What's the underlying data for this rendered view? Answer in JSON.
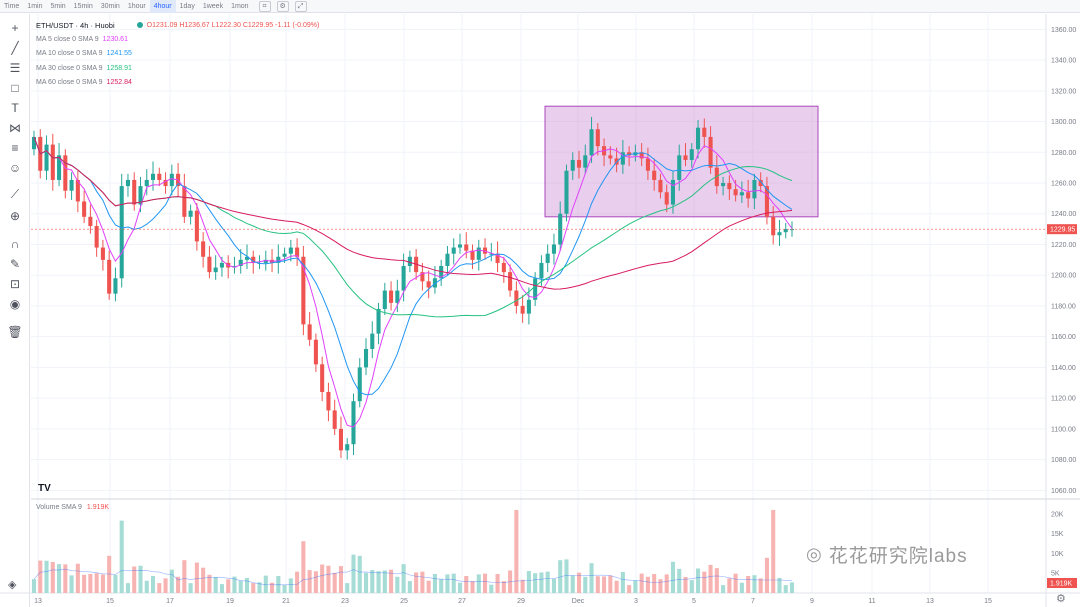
{
  "timeframes": [
    {
      "label": "Time",
      "active": false
    },
    {
      "label": "1min",
      "active": false
    },
    {
      "label": "5min",
      "active": false
    },
    {
      "label": "15min",
      "active": false
    },
    {
      "label": "30min",
      "active": false
    },
    {
      "label": "1hour",
      "active": false
    },
    {
      "label": "4hour",
      "active": true
    },
    {
      "label": "1day",
      "active": false
    },
    {
      "label": "1week",
      "active": false
    },
    {
      "label": "1mon",
      "active": false
    }
  ],
  "header": {
    "symbol": "ETH/USDT · 4h · Huobi",
    "open": "O1231.09",
    "high": "H1236.67",
    "low": "L1222.30",
    "close": "C1229.95",
    "change": "-1.11 (-0.09%)"
  },
  "indicators": [
    {
      "label": "MA 5 close 0 SMA 9",
      "value": "1230.61",
      "color": "#e040fb"
    },
    {
      "label": "MA 10 close 0 SMA 9",
      "value": "1241.55",
      "color": "#2196f3"
    },
    {
      "label": "MA 30 close 0 SMA 9",
      "value": "1258.91",
      "color": "#26c281"
    },
    {
      "label": "MA 60 close 0 SMA 9",
      "value": "1252.84",
      "color": "#d81b60"
    }
  ],
  "volume_legend": {
    "label": "Volume SMA 9",
    "value": "1.919K"
  },
  "price_axis": [
    "1360.00",
    "1340.00",
    "1320.00",
    "1300.00",
    "1280.00",
    "1260.00",
    "1240.00",
    "1220.00",
    "1200.00",
    "1180.00",
    "1160.00",
    "1140.00",
    "1120.00",
    "1100.00",
    "1080.00",
    "1060.00"
  ],
  "current_price": "1229.95",
  "volume_axis": [
    "20K",
    "15K",
    "10K",
    "5K"
  ],
  "current_volume": "1.919K",
  "time_axis": [
    "13",
    "15",
    "17",
    "19",
    "21",
    "23",
    "25",
    "27",
    "29",
    "Dec",
    "3",
    "5",
    "7",
    "9",
    "11",
    "13",
    "15"
  ],
  "watermark": "花花研究院labs",
  "colors": {
    "up": "#26a69a",
    "down": "#ef5350",
    "box": "#ce93d8"
  },
  "chart_data": {
    "type": "candlestick",
    "ylim": [
      1055,
      1370
    ],
    "closes": [
      1290,
      1268,
      1285,
      1262,
      1278,
      1255,
      1262,
      1248,
      1238,
      1232,
      1218,
      1210,
      1188,
      1198,
      1258,
      1262,
      1246,
      1258,
      1262,
      1266,
      1262,
      1258,
      1266,
      1258,
      1238,
      1242,
      1222,
      1212,
      1202,
      1205,
      1208,
      1205,
      1206,
      1210,
      1212,
      1208,
      1208,
      1210,
      1208,
      1212,
      1214,
      1218,
      1212,
      1168,
      1158,
      1142,
      1124,
      1112,
      1100,
      1086,
      1090,
      1118,
      1140,
      1152,
      1162,
      1178,
      1190,
      1182,
      1190,
      1206,
      1212,
      1202,
      1196,
      1192,
      1198,
      1206,
      1214,
      1218,
      1220,
      1216,
      1210,
      1218,
      1214,
      1214,
      1208,
      1202,
      1190,
      1180,
      1175,
      1184,
      1198,
      1208,
      1214,
      1220,
      1240,
      1268,
      1275,
      1270,
      1278,
      1295,
      1284,
      1278,
      1276,
      1272,
      1280,
      1278,
      1280,
      1276,
      1268,
      1262,
      1254,
      1246,
      1262,
      1278,
      1275,
      1282,
      1296,
      1290,
      1270,
      1258,
      1260,
      1256,
      1252,
      1254,
      1250,
      1262,
      1258,
      1238,
      1226,
      1228,
      1230,
      1230
    ],
    "ma_values": [
      1230.61,
      1241.55,
      1258.91,
      1252.84
    ],
    "volume_sma": 1.919
  }
}
